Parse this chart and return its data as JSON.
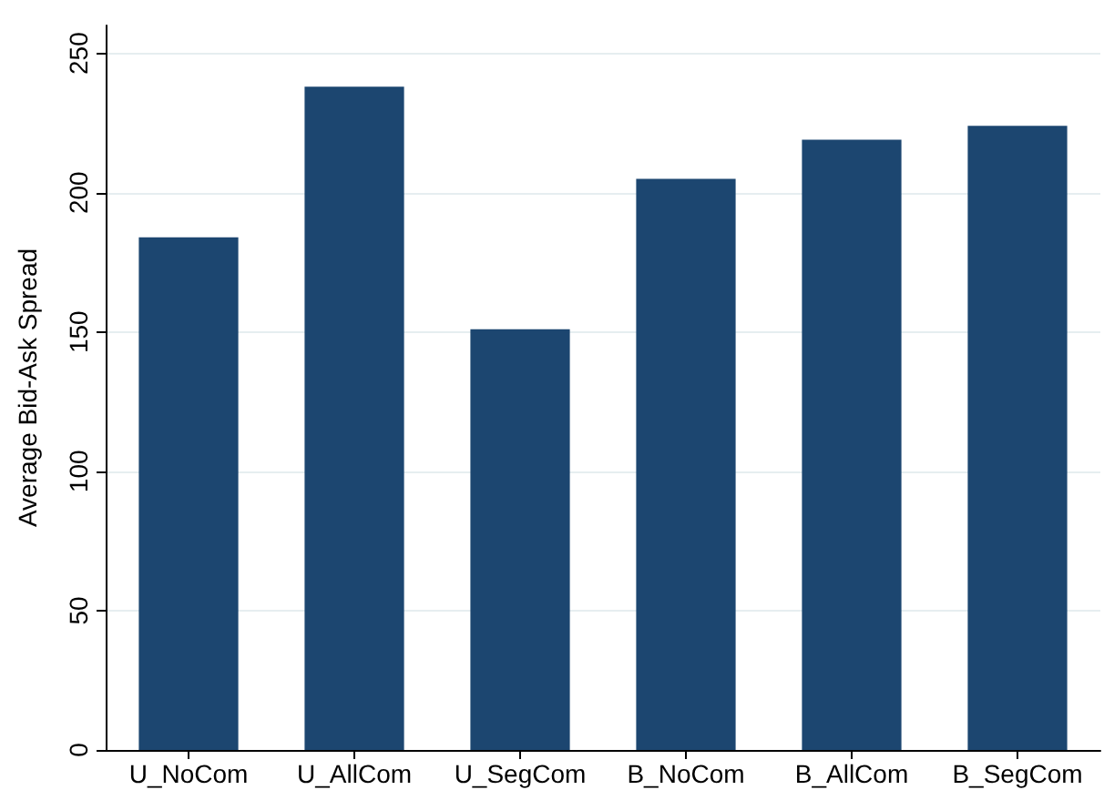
{
  "chart_data": {
    "type": "bar",
    "ylabel": "Average Bid-Ask Spread",
    "categories": [
      "U_NoCom",
      "U_AllCom",
      "U_SegCom",
      "B_NoCom",
      "B_AllCom",
      "B_SegCom"
    ],
    "values": [
      184,
      238,
      151,
      205,
      219,
      224
    ],
    "color": "#1c4670",
    "ylim": [
      0,
      260
    ],
    "yticks": [
      0,
      50,
      100,
      150,
      200,
      250
    ],
    "grid": "y"
  }
}
